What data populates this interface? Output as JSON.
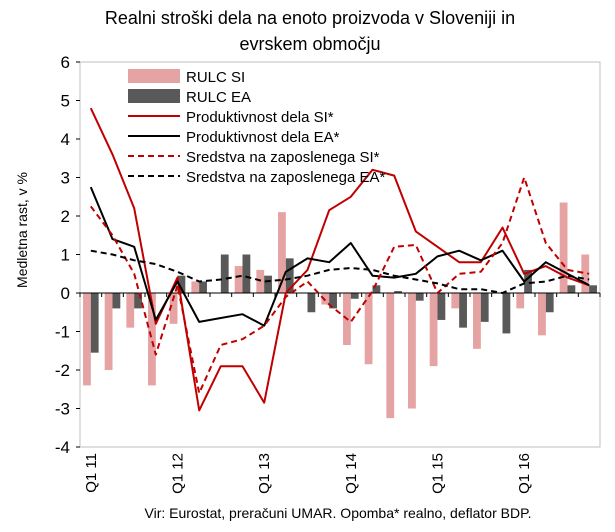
{
  "chart_data": {
    "type": "bar",
    "title_lines": [
      "Realni stroški dela na enoto proizvoda v Sloveniji in",
      "evrskem območju"
    ],
    "ylabel": "Medletna rast, v %",
    "source_note": "Vir: Eurostat, preračuni UMAR.  Opomba* realno, deflator BDP.",
    "ylim": [
      -4,
      6
    ],
    "yticks": [
      -4,
      -3,
      -2,
      -1,
      0,
      1,
      2,
      3,
      4,
      5,
      6
    ],
    "x_labels": [
      {
        "index": 0,
        "label": "Q1 11"
      },
      {
        "index": 4,
        "label": "Q1 12"
      },
      {
        "index": 8,
        "label": "Q1 13"
      },
      {
        "index": 12,
        "label": "Q1 14"
      },
      {
        "index": 16,
        "label": "Q1 15"
      },
      {
        "index": 20,
        "label": "Q1 16"
      }
    ],
    "n_periods": 24,
    "grid": false,
    "legend_position": "top-center",
    "bar_series": [
      {
        "name": "RULC SI",
        "color": "#e5a3a3",
        "values": [
          -2.4,
          -2.0,
          -0.9,
          -2.4,
          -0.8,
          0.3,
          0.0,
          0.7,
          0.6,
          2.1,
          0.0,
          -0.3,
          -1.35,
          -1.85,
          -3.25,
          -3.0,
          -1.9,
          -0.4,
          -1.45,
          0.0,
          -0.4,
          -1.1,
          2.35,
          1.0
        ]
      },
      {
        "name": "RULC EA",
        "color": "#595959",
        "values": [
          -1.55,
          -0.4,
          -0.4,
          0.0,
          0.45,
          0.3,
          1.0,
          1.0,
          0.45,
          0.9,
          -0.5,
          -0.4,
          -0.15,
          0.2,
          0.05,
          -0.2,
          -0.7,
          -0.9,
          -0.75,
          -1.05,
          0.6,
          -0.5,
          0.2,
          0.2
        ]
      }
    ],
    "line_series": [
      {
        "name": "Produktivnost dela SI*",
        "color": "#c00000",
        "dash": "solid",
        "values": [
          4.8,
          3.6,
          2.2,
          -0.8,
          0.4,
          -3.05,
          -1.9,
          -1.9,
          -2.85,
          0.0,
          0.6,
          2.15,
          2.5,
          3.2,
          3.05,
          1.6,
          1.2,
          0.8,
          0.8,
          1.7,
          0.5,
          0.7,
          0.4,
          0.2
        ]
      },
      {
        "name": "Produktivnost dela EA*",
        "color": "#000000",
        "dash": "solid",
        "values": [
          2.75,
          1.4,
          1.2,
          -0.7,
          0.3,
          -0.75,
          -0.65,
          -0.55,
          -0.85,
          0.55,
          0.9,
          0.8,
          1.3,
          0.45,
          0.4,
          0.5,
          0.95,
          1.1,
          0.85,
          1.1,
          0.3,
          0.8,
          0.5,
          0.2
        ]
      },
      {
        "name": "Sredstva na zaposlenega SI*",
        "color": "#c00000",
        "dash": "dashed",
        "values": [
          2.25,
          1.5,
          0.5,
          -1.6,
          0.2,
          -2.6,
          -1.35,
          -1.2,
          -0.85,
          -0.1,
          0.3,
          -0.3,
          -0.75,
          0.05,
          1.2,
          1.25,
          0.0,
          0.5,
          0.55,
          1.3,
          3.0,
          1.3,
          0.6,
          0.5
        ]
      },
      {
        "name": "Sredstva na zaposlenega EA*",
        "color": "#000000",
        "dash": "dashed",
        "values": [
          1.1,
          1.0,
          0.85,
          0.75,
          0.55,
          0.3,
          0.35,
          0.45,
          0.3,
          0.35,
          0.45,
          0.6,
          0.65,
          0.6,
          0.45,
          0.35,
          0.25,
          0.1,
          0.1,
          0.0,
          0.25,
          0.3,
          0.45,
          0.35
        ]
      }
    ]
  }
}
